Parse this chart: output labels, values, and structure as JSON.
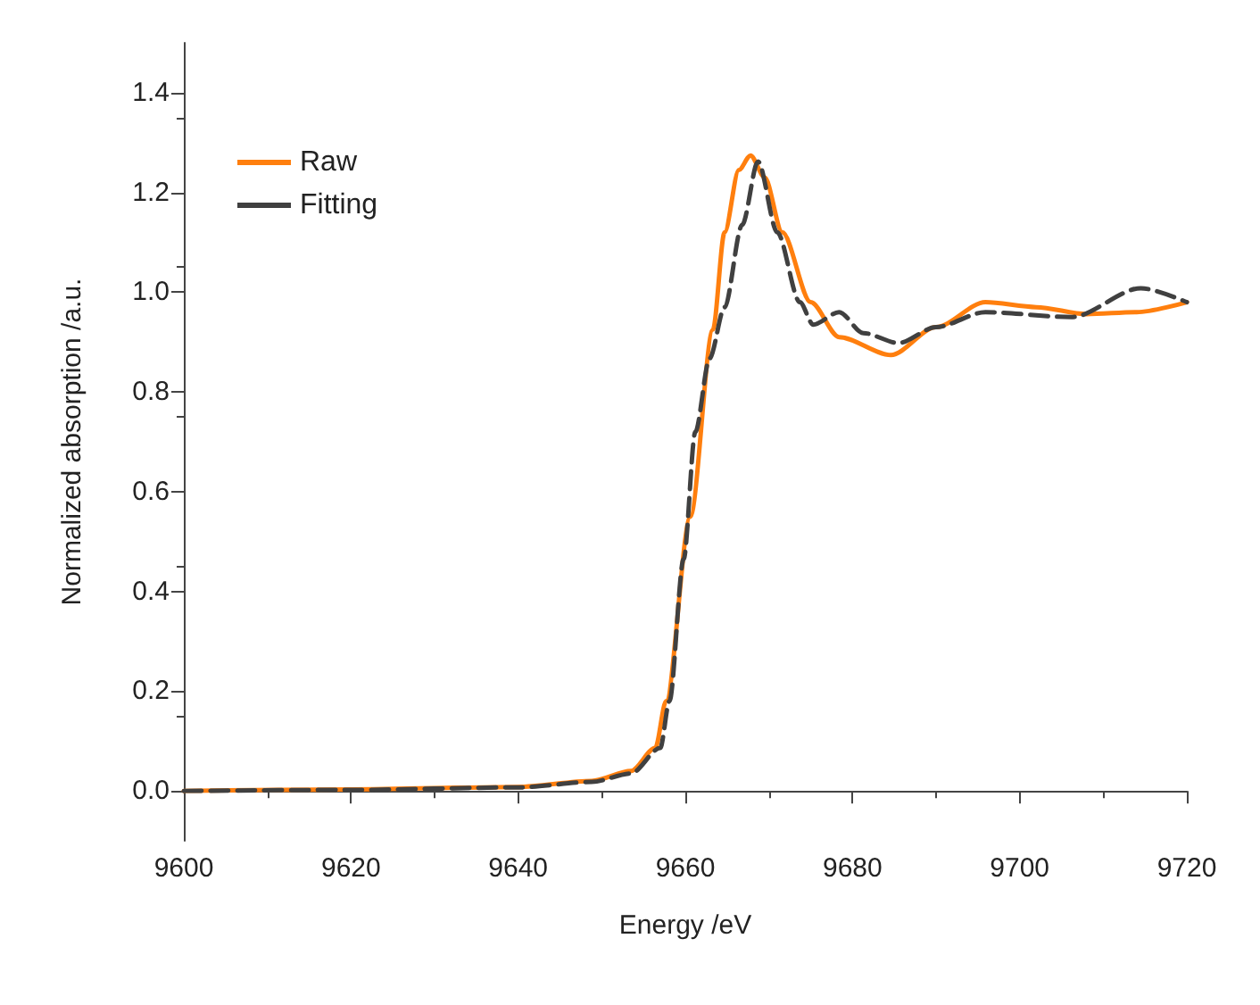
{
  "chart_data": {
    "type": "line",
    "xlabel": "Energy /eV",
    "ylabel": "Normalized absorption /a.u.",
    "xlim": [
      9600,
      9720
    ],
    "xticks": [
      9600,
      9620,
      9640,
      9660,
      9680,
      9700,
      9720
    ],
    "ylim": [
      -0.1,
      1.5
    ],
    "yticks": [
      {
        "value": 0,
        "label": "0.0"
      },
      0.2,
      0.4,
      0.6,
      0.8,
      {
        "value": 1,
        "label": "1.0"
      },
      1.2,
      1.4
    ],
    "legend": "top left",
    "grid": false,
    "marker": "none",
    "series": [
      {
        "name": "Raw",
        "color": "#ff7f0e",
        "line_style": "solid",
        "x": [
          9600,
          9620,
          9640,
          9648.8,
          9653.5,
          9656.4,
          9657.7,
          9660.6,
          9663.3,
          9664.7,
          9666.4,
          9667.8,
          9669.5,
          9671.6,
          9675,
          9678.4,
          9684.6,
          9690,
          9695.9,
          9702,
          9708,
          9714,
          9720
        ],
        "values": [
          0,
          0.003,
          0.008,
          0.02,
          0.04,
          0.086,
          0.18,
          0.55,
          0.925,
          1.12,
          1.245,
          1.274,
          1.23,
          1.12,
          0.98,
          0.91,
          0.874,
          0.93,
          0.98,
          0.97,
          0.956,
          0.96,
          0.98
        ]
      },
      {
        "name": "Fitting",
        "color": "#404040",
        "line_style": "dashed",
        "x": [
          9600,
          9620,
          9640,
          9648.8,
          9653.5,
          9657,
          9658.1,
          9659.8,
          9661.2,
          9662.9,
          9664.7,
          9666.8,
          9668.7,
          9671,
          9673.7,
          9675.3,
          9678.4,
          9681.3,
          9685.5,
          9690,
          9695.9,
          9706.2,
          9714.5,
          9720
        ],
        "values": [
          0,
          0.002,
          0.007,
          0.018,
          0.035,
          0.086,
          0.18,
          0.465,
          0.72,
          0.867,
          0.97,
          1.135,
          1.262,
          1.12,
          0.98,
          0.935,
          0.96,
          0.918,
          0.898,
          0.93,
          0.96,
          0.95,
          1.008,
          0.98
        ]
      }
    ]
  }
}
